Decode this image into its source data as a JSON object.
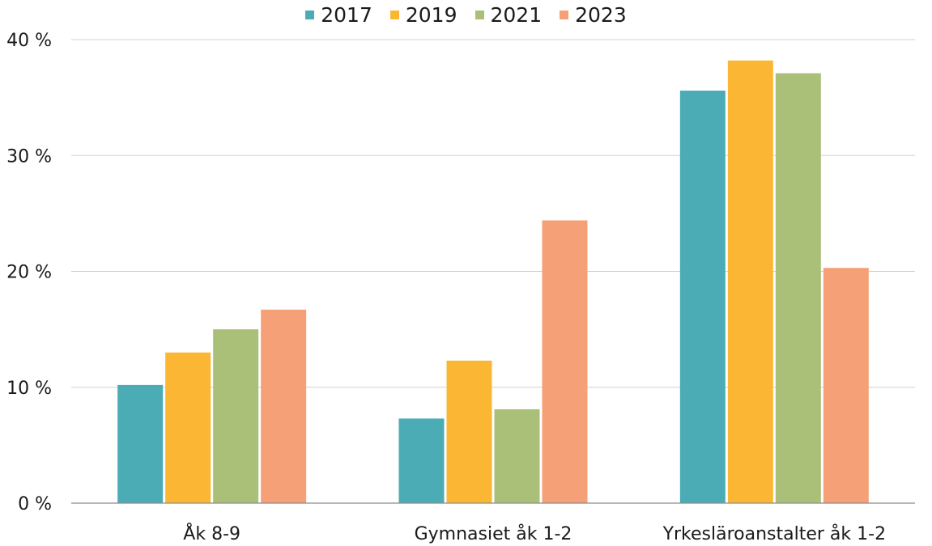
{
  "chart_data": {
    "type": "bar",
    "categories": [
      "Åk 8-9",
      "Gymnasiet åk 1-2",
      "Yrkesläroanstalter åk 1-2"
    ],
    "series": [
      {
        "name": "2017",
        "values": [
          10.2,
          7.3,
          35.6
        ],
        "color": "#4bacb6"
      },
      {
        "name": "2019",
        "values": [
          13.0,
          12.3,
          38.2
        ],
        "color": "#fbb734"
      },
      {
        "name": "2021",
        "values": [
          15.0,
          8.1,
          37.1
        ],
        "color": "#aac078"
      },
      {
        "name": "2023",
        "values": [
          16.7,
          24.4,
          20.3
        ],
        "color": "#f6a077"
      }
    ],
    "yticks": [
      "0 %",
      "10 %",
      "20 %",
      "30 %",
      "40 %"
    ],
    "ytick_values": [
      0,
      10,
      20,
      30,
      40
    ],
    "ylim": [
      0,
      40
    ],
    "grid": true,
    "legend_position": "top"
  }
}
